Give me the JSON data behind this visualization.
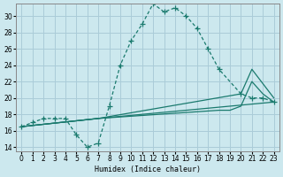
{
  "xlabel": "Humidex (Indice chaleur)",
  "background_color": "#cce8ee",
  "grid_color": "#aaccd8",
  "line_color": "#1a7a6e",
  "xlim": [
    -0.5,
    23.5
  ],
  "ylim": [
    13.5,
    31.5
  ],
  "ytick_vals": [
    14,
    16,
    18,
    20,
    22,
    24,
    26,
    28,
    30
  ],
  "xtick_vals": [
    0,
    1,
    2,
    3,
    4,
    5,
    6,
    7,
    8,
    9,
    10,
    11,
    12,
    13,
    14,
    15,
    16,
    17,
    18,
    19,
    20,
    21,
    22,
    23
  ],
  "main_x": [
    0,
    1,
    2,
    3,
    4,
    5,
    6,
    7,
    8,
    9,
    10,
    11,
    12,
    13,
    14,
    15,
    16,
    17,
    18,
    20,
    21,
    22,
    23
  ],
  "main_y": [
    16.5,
    17.0,
    17.5,
    17.5,
    17.5,
    15.5,
    14.0,
    14.5,
    19.0,
    24.0,
    27.0,
    29.0,
    31.5,
    30.5,
    31.0,
    30.0,
    28.5,
    26.0,
    23.5,
    20.5,
    20.0,
    20.0,
    19.5
  ],
  "line1_x": [
    0,
    7,
    23
  ],
  "line1_y": [
    16.5,
    17.5,
    19.5
  ],
  "line2_x": [
    0,
    7,
    20,
    21,
    23
  ],
  "line2_y": [
    16.5,
    17.5,
    20.5,
    23.5,
    20.0
  ],
  "line3_x": [
    0,
    7,
    18,
    19,
    20,
    21,
    22,
    23
  ],
  "line3_y": [
    16.5,
    17.5,
    18.5,
    18.5,
    19.0,
    22.0,
    20.5,
    19.5
  ]
}
